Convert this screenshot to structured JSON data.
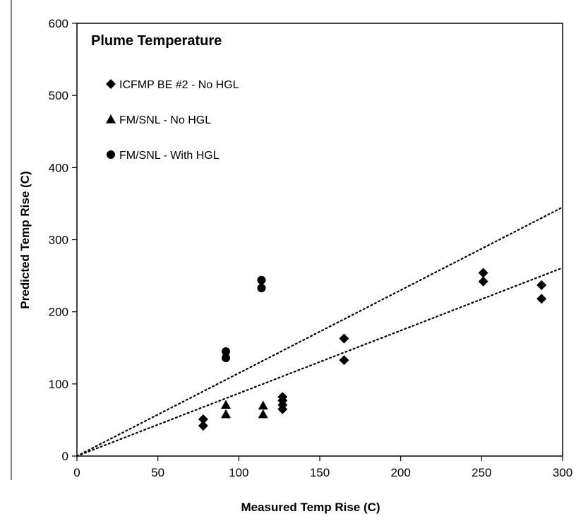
{
  "chart_data": {
    "type": "scatter",
    "title": "Plume Temperature",
    "xlabel": "Measured Temp Rise (C)",
    "ylabel": "Predicted Temp Rise (C)",
    "xlim": [
      0,
      300
    ],
    "ylim": [
      0,
      600
    ],
    "xticks": [
      "0",
      "50",
      "100",
      "150",
      "200",
      "250",
      "300"
    ],
    "yticks": [
      "0",
      "100",
      "200",
      "300",
      "400",
      "500",
      "600"
    ],
    "grid": false,
    "legend_position": "top-left",
    "series": [
      {
        "name": "ICFMP BE #2 - No HGL",
        "marker": "diamond",
        "points": [
          [
            78,
            42
          ],
          [
            78,
            51
          ],
          [
            127,
            65
          ],
          [
            127,
            71
          ],
          [
            127,
            77
          ],
          [
            127,
            82
          ],
          [
            165,
            133
          ],
          [
            165,
            163
          ],
          [
            251,
            242
          ],
          [
            251,
            254
          ],
          [
            287,
            218
          ],
          [
            287,
            237
          ]
        ]
      },
      {
        "name": "FM/SNL - No HGL",
        "marker": "triangle",
        "points": [
          [
            92,
            58
          ],
          [
            92,
            71
          ],
          [
            115,
            58
          ],
          [
            115,
            70
          ]
        ]
      },
      {
        "name": "FM/SNL - With HGL",
        "marker": "circle",
        "points": [
          [
            92,
            136
          ],
          [
            92,
            145
          ],
          [
            114,
            233
          ],
          [
            114,
            244
          ]
        ]
      }
    ],
    "reference_lines": [
      {
        "style": "dotted",
        "points": [
          [
            0,
            0
          ],
          [
            300,
            345
          ]
        ]
      },
      {
        "style": "dotted",
        "points": [
          [
            0,
            0
          ],
          [
            300,
            261
          ]
        ]
      }
    ]
  }
}
